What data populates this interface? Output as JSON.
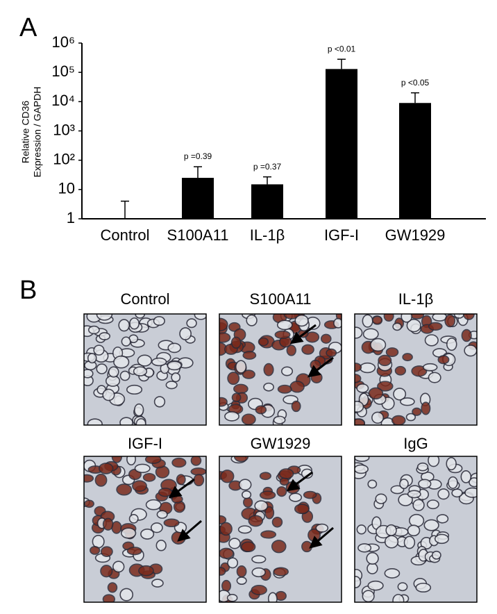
{
  "panel_labels": [
    "A",
    "B"
  ],
  "chart_data": {
    "type": "bar",
    "log_scale": true,
    "ylabel": [
      "Relative CD36",
      "Expression / GAPDH"
    ],
    "categories": [
      "Control",
      "S100A11",
      "IL-1β",
      "IGF-I",
      "GW1929"
    ],
    "values": [
      1,
      25,
      15,
      130000,
      9000
    ],
    "errors": [
      3,
      35,
      12,
      150000,
      11000
    ],
    "annotations": [
      null,
      "p =0.39",
      "p =0.37",
      "p <0.01",
      "p <0.05"
    ],
    "color": "#000000",
    "ylim": [
      1,
      1000000
    ],
    "yticks": [
      1,
      10,
      {
        "value": 100,
        "label": "10²"
      },
      {
        "value": 1000,
        "label": "10³"
      },
      {
        "value": 10000,
        "label": "10⁴"
      },
      {
        "value": 100000,
        "label": "10⁵"
      },
      {
        "value": 1000000,
        "label": "10⁶"
      }
    ]
  },
  "micrographs": [
    "Control",
    "S100A11",
    "IL-1β",
    "IGF-I",
    "GW1929",
    "IgG"
  ]
}
